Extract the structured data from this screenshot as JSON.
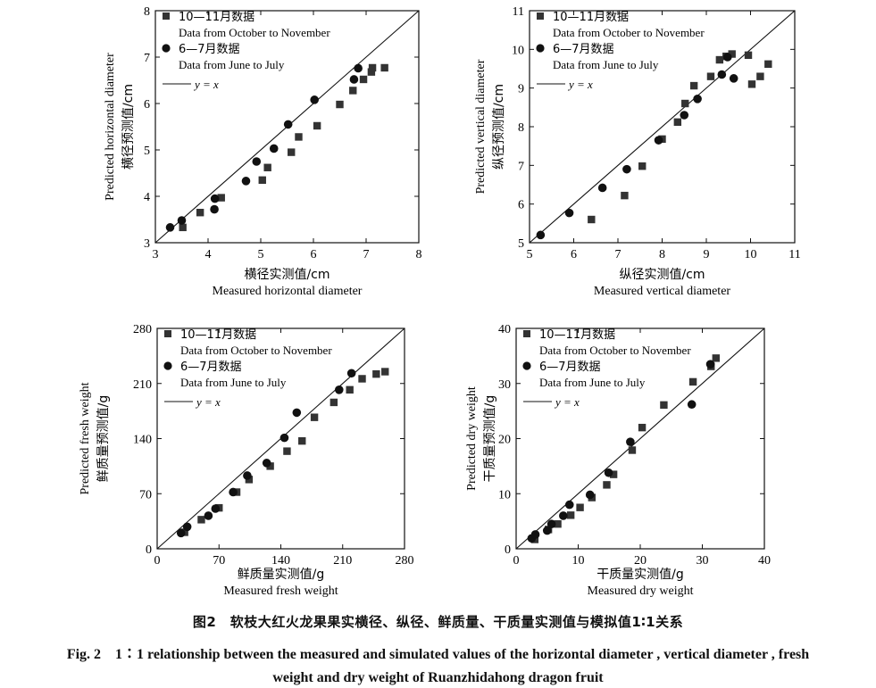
{
  "caption": {
    "cn_line": "图2　软枝大红火龙果果实横径、纵径、鲜质量、干质量实测值与模拟值1∶1关系",
    "en_line1": "Fig. 2　1∶1 relationship between the measured and simulated values of the horizontal diameter , vertical diameter , fresh",
    "en_line2": "weight and dry weight of Ruanzhidahong dragon fruit"
  },
  "legend": {
    "oct_nov_cn": "10—11月数据",
    "oct_nov_en": "Data from October to November",
    "jun_jul_cn": "6—7月数据",
    "jun_jul_en": "Data from June to July",
    "line": "y = x"
  },
  "colors": {
    "oct_nov": "#333333",
    "jun_jul": "#111111",
    "line": "#111111"
  },
  "chart_data": [
    {
      "type": "scatter",
      "xlabel_cn": "横径实测值/cm",
      "xlabel_en": "Measured horizontal diameter",
      "ylabel_cn": "横径预测值/cm",
      "ylabel_en": "Predicted horizontal diameter",
      "xlim": [
        3,
        8
      ],
      "ylim": [
        3,
        8
      ],
      "xticks": [
        3,
        4,
        5,
        6,
        7,
        8
      ],
      "yticks": [
        3,
        4,
        5,
        6,
        7,
        8
      ],
      "reference_line": "y = x",
      "legend_position": "top-left",
      "series": [
        {
          "name": "10—11月数据 Data from October to November",
          "marker": "square",
          "points": [
            [
              3.52,
              3.33
            ],
            [
              3.85,
              3.65
            ],
            [
              4.25,
              3.97
            ],
            [
              5.03,
              4.35
            ],
            [
              5.13,
              4.62
            ],
            [
              5.58,
              4.95
            ],
            [
              5.72,
              5.28
            ],
            [
              6.07,
              5.52
            ],
            [
              6.5,
              5.98
            ],
            [
              6.75,
              6.28
            ],
            [
              6.95,
              6.52
            ],
            [
              7.1,
              6.68
            ],
            [
              7.12,
              6.77
            ],
            [
              7.35,
              6.77
            ]
          ]
        },
        {
          "name": "6—7月数据 Data from June to July",
          "marker": "circle",
          "points": [
            [
              3.28,
              3.33
            ],
            [
              3.5,
              3.48
            ],
            [
              4.12,
              3.72
            ],
            [
              4.13,
              3.95
            ],
            [
              4.72,
              4.33
            ],
            [
              4.92,
              4.75
            ],
            [
              5.25,
              5.03
            ],
            [
              5.52,
              5.55
            ],
            [
              6.02,
              6.08
            ],
            [
              6.77,
              6.52
            ],
            [
              6.85,
              6.76
            ]
          ]
        }
      ]
    },
    {
      "type": "scatter",
      "xlabel_cn": "纵径实测值/cm",
      "xlabel_en": "Measured vertical diameter",
      "ylabel_cn": "纵径预测值/cm",
      "ylabel_en": "Predicted vertical diameter",
      "xlim": [
        5,
        11
      ],
      "ylim": [
        5,
        11
      ],
      "xticks": [
        5,
        6,
        7,
        8,
        9,
        10,
        11
      ],
      "yticks": [
        5,
        6,
        7,
        8,
        9,
        10,
        11
      ],
      "reference_line": "y = x",
      "legend_position": "top-left",
      "series": [
        {
          "name": "10—11月数据 Data from October to November",
          "marker": "square",
          "points": [
            [
              6.4,
              5.6
            ],
            [
              7.15,
              6.22
            ],
            [
              7.55,
              6.98
            ],
            [
              8.0,
              7.68
            ],
            [
              8.35,
              8.12
            ],
            [
              8.52,
              8.6
            ],
            [
              8.72,
              9.06
            ],
            [
              9.1,
              9.3
            ],
            [
              9.3,
              9.73
            ],
            [
              9.45,
              9.82
            ],
            [
              9.58,
              9.88
            ],
            [
              9.95,
              9.85
            ],
            [
              10.03,
              9.1
            ],
            [
              10.22,
              9.3
            ],
            [
              10.4,
              9.62
            ]
          ]
        },
        {
          "name": "6—7月数据 Data from June to July",
          "marker": "circle",
          "points": [
            [
              5.25,
              5.2
            ],
            [
              5.9,
              5.77
            ],
            [
              6.65,
              6.42
            ],
            [
              7.2,
              6.9
            ],
            [
              7.92,
              7.65
            ],
            [
              8.5,
              8.3
            ],
            [
              8.8,
              8.72
            ],
            [
              9.35,
              9.35
            ],
            [
              9.48,
              9.8
            ],
            [
              9.62,
              9.25
            ]
          ]
        }
      ]
    },
    {
      "type": "scatter",
      "xlabel_cn": "鲜质量实测值/g",
      "xlabel_en": "Measured fresh weight",
      "ylabel_cn": "鲜质量预测值/g",
      "ylabel_en": "Predicted fresh weight",
      "xlim": [
        0,
        280
      ],
      "ylim": [
        0,
        280
      ],
      "xticks": [
        0,
        70,
        140,
        210,
        280
      ],
      "yticks": [
        0,
        70,
        140,
        210,
        280
      ],
      "reference_line": "y = x",
      "legend_position": "top-left",
      "series": [
        {
          "name": "10—11月数据 Data from October to November",
          "marker": "square",
          "points": [
            [
              31,
              21
            ],
            [
              50,
              37
            ],
            [
              70,
              52
            ],
            [
              90,
              72
            ],
            [
              104,
              88
            ],
            [
              128,
              105
            ],
            [
              147,
              124
            ],
            [
              164,
              137
            ],
            [
              178,
              167
            ],
            [
              200,
              186
            ],
            [
              218,
              202
            ],
            [
              232,
              216
            ],
            [
              248,
              222
            ],
            [
              258,
              225
            ]
          ]
        },
        {
          "name": "6—7月数据 Data from June to July",
          "marker": "circle",
          "points": [
            [
              27,
              20
            ],
            [
              34,
              28
            ],
            [
              58,
              42
            ],
            [
              66,
              51
            ],
            [
              86,
              72
            ],
            [
              102,
              93
            ],
            [
              124,
              109
            ],
            [
              144,
              141
            ],
            [
              158,
              173
            ],
            [
              206,
              202
            ],
            [
              220,
              223
            ]
          ]
        }
      ]
    },
    {
      "type": "scatter",
      "xlabel_cn": "干质量实测值/g",
      "xlabel_en": "Measured dry weight",
      "ylabel_cn": "干质量预测值/g",
      "ylabel_en": "Predicted dry weight",
      "xlim": [
        0,
        40
      ],
      "ylim": [
        0,
        40
      ],
      "xticks": [
        0,
        10,
        20,
        30,
        40
      ],
      "yticks": [
        0,
        10,
        20,
        30,
        40
      ],
      "reference_line": "y = x",
      "legend_position": "top-left",
      "series": [
        {
          "name": "10—11月数据 Data from October to November",
          "marker": "square",
          "points": [
            [
              3.0,
              1.7
            ],
            [
              5.2,
              3.5
            ],
            [
              6.7,
              4.5
            ],
            [
              8.8,
              6.1
            ],
            [
              10.3,
              7.5
            ],
            [
              12.2,
              9.3
            ],
            [
              14.6,
              11.6
            ],
            [
              15.7,
              13.5
            ],
            [
              18.7,
              17.9
            ],
            [
              20.3,
              22.0
            ],
            [
              23.8,
              26.1
            ],
            [
              28.5,
              30.3
            ],
            [
              31.4,
              33.1
            ],
            [
              32.2,
              34.6
            ]
          ]
        },
        {
          "name": "6—7月数据 Data from June to July",
          "marker": "circle",
          "points": [
            [
              2.5,
              1.9
            ],
            [
              3.1,
              2.6
            ],
            [
              5.0,
              3.3
            ],
            [
              5.7,
              4.5
            ],
            [
              7.6,
              6.0
            ],
            [
              8.6,
              8.0
            ],
            [
              11.9,
              9.8
            ],
            [
              14.9,
              13.8
            ],
            [
              18.4,
              19.4
            ],
            [
              28.3,
              26.2
            ],
            [
              31.3,
              33.5
            ]
          ]
        }
      ]
    }
  ]
}
